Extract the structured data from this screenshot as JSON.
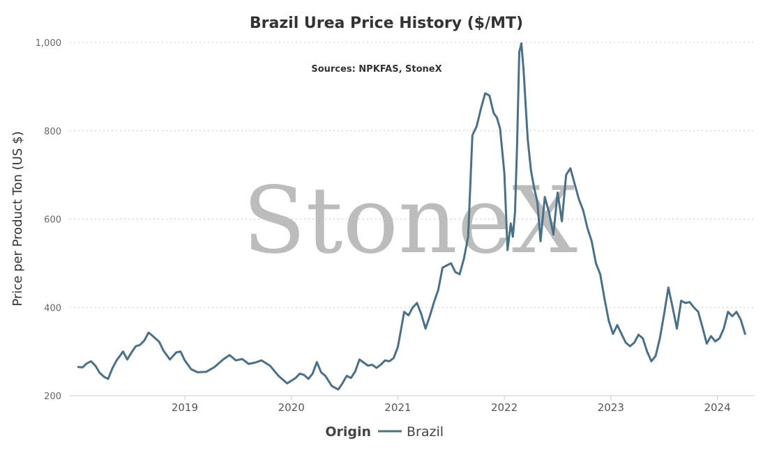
{
  "chart_data": {
    "type": "line",
    "title": "Brazil Urea Price History ($/MT)",
    "subtitle": "Sources: NPKFAS, StoneX",
    "watermark": "StoneX",
    "ylabel": "Price per Product Ton (US $)",
    "xlabel": "",
    "ylim": [
      200,
      1000
    ],
    "y_ticks": [
      {
        "value": 200,
        "label": "200"
      },
      {
        "value": 400,
        "label": "400"
      },
      {
        "value": 600,
        "label": "600"
      },
      {
        "value": 800,
        "label": "800"
      },
      {
        "value": 1000,
        "label": "1,000"
      }
    ],
    "x_ticks": [
      {
        "value": 2019,
        "label": "2019"
      },
      {
        "value": 2020,
        "label": "2020"
      },
      {
        "value": 2021,
        "label": "2021"
      },
      {
        "value": 2022,
        "label": "2022"
      },
      {
        "value": 2023,
        "label": "2023"
      },
      {
        "value": 2024,
        "label": "2024"
      }
    ],
    "xlim": [
      2017.92,
      2024.35
    ],
    "grid": "horizontal dotted",
    "legend": {
      "title": "Origin",
      "placement": "bottom-center"
    },
    "series": [
      {
        "name": "Brazil",
        "color": "#4a7088",
        "x": [
          2018.0,
          2018.04,
          2018.08,
          2018.12,
          2018.16,
          2018.2,
          2018.24,
          2018.28,
          2018.32,
          2018.36,
          2018.42,
          2018.46,
          2018.5,
          2018.54,
          2018.58,
          2018.62,
          2018.66,
          2018.7,
          2018.76,
          2018.8,
          2018.86,
          2018.92,
          2018.96,
          2019.0,
          2019.06,
          2019.12,
          2019.2,
          2019.28,
          2019.36,
          2019.42,
          2019.48,
          2019.54,
          2019.6,
          2019.66,
          2019.72,
          2019.8,
          2019.88,
          2019.96,
          2020.0,
          2020.04,
          2020.08,
          2020.12,
          2020.16,
          2020.2,
          2020.24,
          2020.28,
          2020.32,
          2020.38,
          2020.44,
          2020.48,
          2020.52,
          2020.56,
          2020.6,
          2020.64,
          2020.68,
          2020.72,
          2020.76,
          2020.8,
          2020.84,
          2020.88,
          2020.92,
          2020.96,
          2021.0,
          2021.03,
          2021.06,
          2021.1,
          2021.14,
          2021.18,
          2021.22,
          2021.26,
          2021.3,
          2021.34,
          2021.38,
          2021.42,
          2021.46,
          2021.5,
          2021.54,
          2021.58,
          2021.62,
          2021.66,
          2021.7,
          2021.74,
          2021.78,
          2021.82,
          2021.86,
          2021.9,
          2021.93,
          2021.96,
          2022.0,
          2022.03,
          2022.06,
          2022.08,
          2022.1,
          2022.12,
          2022.14,
          2022.16,
          2022.18,
          2022.2,
          2022.22,
          2022.25,
          2022.28,
          2022.31,
          2022.34,
          2022.38,
          2022.42,
          2022.46,
          2022.5,
          2022.54,
          2022.58,
          2022.62,
          2022.66,
          2022.7,
          2022.74,
          2022.78,
          2022.82,
          2022.86,
          2022.9,
          2022.94,
          2022.98,
          2023.02,
          2023.06,
          2023.1,
          2023.14,
          2023.18,
          2023.22,
          2023.26,
          2023.3,
          2023.34,
          2023.38,
          2023.42,
          2023.46,
          2023.5,
          2023.54,
          2023.58,
          2023.62,
          2023.66,
          2023.7,
          2023.74,
          2023.78,
          2023.82,
          2023.86,
          2023.9,
          2023.94,
          2023.98,
          2024.02,
          2024.06,
          2024.1,
          2024.14,
          2024.18,
          2024.22,
          2024.26
        ],
        "values": [
          265,
          264,
          273,
          278,
          268,
          252,
          243,
          238,
          262,
          280,
          300,
          282,
          298,
          312,
          315,
          325,
          343,
          335,
          322,
          302,
          282,
          298,
          300,
          280,
          260,
          253,
          254,
          265,
          282,
          292,
          280,
          283,
          272,
          275,
          280,
          268,
          245,
          228,
          234,
          240,
          250,
          247,
          238,
          250,
          276,
          253,
          245,
          222,
          214,
          228,
          245,
          240,
          255,
          282,
          275,
          268,
          270,
          263,
          270,
          280,
          278,
          285,
          310,
          350,
          390,
          382,
          400,
          410,
          385,
          352,
          380,
          412,
          440,
          490,
          495,
          500,
          480,
          475,
          510,
          560,
          790,
          810,
          850,
          885,
          880,
          840,
          830,
          805,
          705,
          530,
          590,
          560,
          615,
          770,
          978,
          998,
          940,
          860,
          780,
          710,
          670,
          640,
          550,
          650,
          615,
          565,
          660,
          595,
          700,
          715,
          680,
          645,
          620,
          580,
          550,
          500,
          475,
          420,
          370,
          340,
          360,
          340,
          320,
          312,
          320,
          338,
          330,
          300,
          278,
          290,
          330,
          385,
          445,
          400,
          352,
          415,
          410,
          412,
          400,
          390,
          355,
          318,
          335,
          323,
          330,
          352,
          390,
          380,
          390,
          372,
          340
        ]
      }
    ]
  }
}
